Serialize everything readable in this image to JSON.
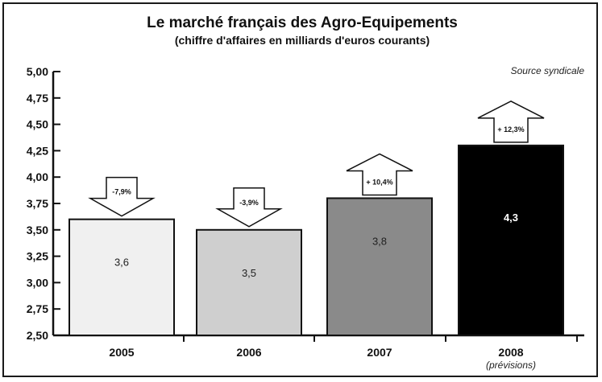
{
  "title": "Le marché français des Agro-Equipements",
  "subtitle": "(chiffre d'affaires en milliards d'euros courants)",
  "source": "Source syndicale",
  "chart_data": {
    "type": "bar",
    "title": "Le marché français des Agro-Equipements",
    "subtitle": "(chiffre d'affaires en milliards d'euros courants)",
    "categories": [
      "2005",
      "2006",
      "2007",
      "2008"
    ],
    "category_notes": [
      "",
      "",
      "",
      "(prévisions)"
    ],
    "values": [
      3.6,
      3.5,
      3.8,
      4.3
    ],
    "value_labels": [
      "3,6",
      "3,5",
      "3,8",
      "4,3"
    ],
    "bar_colors": [
      "#f0f0f0",
      "#cfcfcf",
      "#8a8a8a",
      "#000000"
    ],
    "value_label_colors": [
      "#222222",
      "#222222",
      "#222222",
      "#ffffff"
    ],
    "changes": [
      "-7,9%",
      "-3,9%",
      "+ 10,4%",
      "+ 12,3%"
    ],
    "change_direction": [
      "down",
      "down",
      "up",
      "up"
    ],
    "ylim": [
      2.5,
      5.0
    ],
    "yticks": [
      "2,50",
      "2,75",
      "3,00",
      "3,25",
      "3,50",
      "3,75",
      "4,00",
      "4,25",
      "4,50",
      "4,75",
      "5,00"
    ],
    "grid": false,
    "legend": "none"
  }
}
